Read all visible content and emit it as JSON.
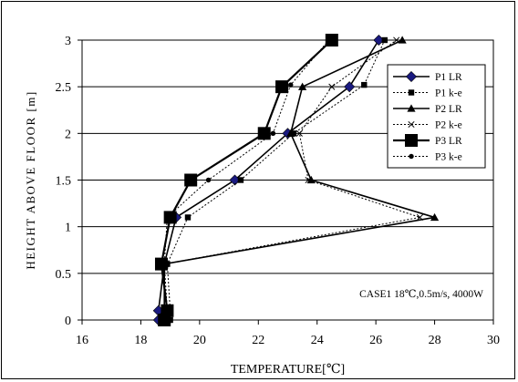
{
  "chart_data": {
    "type": "line",
    "title": "",
    "xlabel": "TEMPERATURE[℃]",
    "ylabel": "HEIGHT ABOVE FLOOR [m]",
    "xlim": [
      16,
      30
    ],
    "ylim": [
      0,
      3
    ],
    "x_ticks": [
      "16",
      "18",
      "20",
      "22",
      "24",
      "26",
      "28",
      "30"
    ],
    "y_ticks": [
      "0",
      "0.5",
      "1",
      "1.5",
      "2",
      "2.5",
      "3"
    ],
    "grid": "horizontal",
    "legend_position": "right",
    "annotation": "CASE1 18℃,0.5m/s, 4000W",
    "series": [
      {
        "name": "P1 LR",
        "line": "solid",
        "marker": "diamond",
        "marker_size": "medium",
        "points": [
          [
            18.6,
            0
          ],
          [
            18.6,
            0.1
          ],
          [
            18.8,
            0.6
          ],
          [
            19.2,
            1.1
          ],
          [
            21.2,
            1.5
          ],
          [
            23.0,
            2.0
          ],
          [
            25.1,
            2.5
          ],
          [
            26.1,
            3.0
          ]
        ]
      },
      {
        "name": "P1 k-e",
        "line": "dotted",
        "marker": "square",
        "marker_size": "small",
        "points": [
          [
            19.0,
            0
          ],
          [
            19.0,
            0.1
          ],
          [
            18.9,
            0.6
          ],
          [
            19.6,
            1.1
          ],
          [
            21.4,
            1.5
          ],
          [
            23.2,
            2.0
          ],
          [
            25.6,
            2.52
          ],
          [
            26.3,
            3.0
          ]
        ]
      },
      {
        "name": "P2 LR",
        "line": "solid",
        "marker": "triangle",
        "marker_size": "medium",
        "points": [
          [
            18.8,
            0
          ],
          [
            18.8,
            0.1
          ],
          [
            18.8,
            0.6
          ],
          [
            28.0,
            1.1
          ],
          [
            23.8,
            1.5
          ],
          [
            23.1,
            2.0
          ],
          [
            23.5,
            2.5
          ],
          [
            26.9,
            3.0
          ]
        ]
      },
      {
        "name": "P2 k-e",
        "line": "dotted",
        "marker": "cross",
        "marker_size": "small",
        "points": [
          [
            18.9,
            0
          ],
          [
            18.9,
            0.1
          ],
          [
            18.8,
            0.6
          ],
          [
            27.5,
            1.1
          ],
          [
            23.7,
            1.5
          ],
          [
            23.4,
            2.0
          ],
          [
            24.5,
            2.5
          ],
          [
            26.7,
            3.0
          ]
        ]
      },
      {
        "name": "P3 LR",
        "line": "solid",
        "marker": "square",
        "marker_size": "large",
        "points": [
          [
            18.8,
            0
          ],
          [
            18.9,
            0.1
          ],
          [
            18.7,
            0.6
          ],
          [
            19.0,
            1.1
          ],
          [
            19.7,
            1.5
          ],
          [
            22.2,
            2.0
          ],
          [
            22.8,
            2.5
          ],
          [
            24.5,
            3.0
          ]
        ]
      },
      {
        "name": "P3 k-e",
        "line": "dotted",
        "marker": "circle",
        "marker_size": "small",
        "points": [
          [
            18.8,
            0
          ],
          [
            18.8,
            0.1
          ],
          [
            18.8,
            0.6
          ],
          [
            18.9,
            1.1
          ],
          [
            20.3,
            1.5
          ],
          [
            22.5,
            2.0
          ],
          [
            23.1,
            2.52
          ],
          [
            24.4,
            3.0
          ]
        ]
      }
    ]
  }
}
